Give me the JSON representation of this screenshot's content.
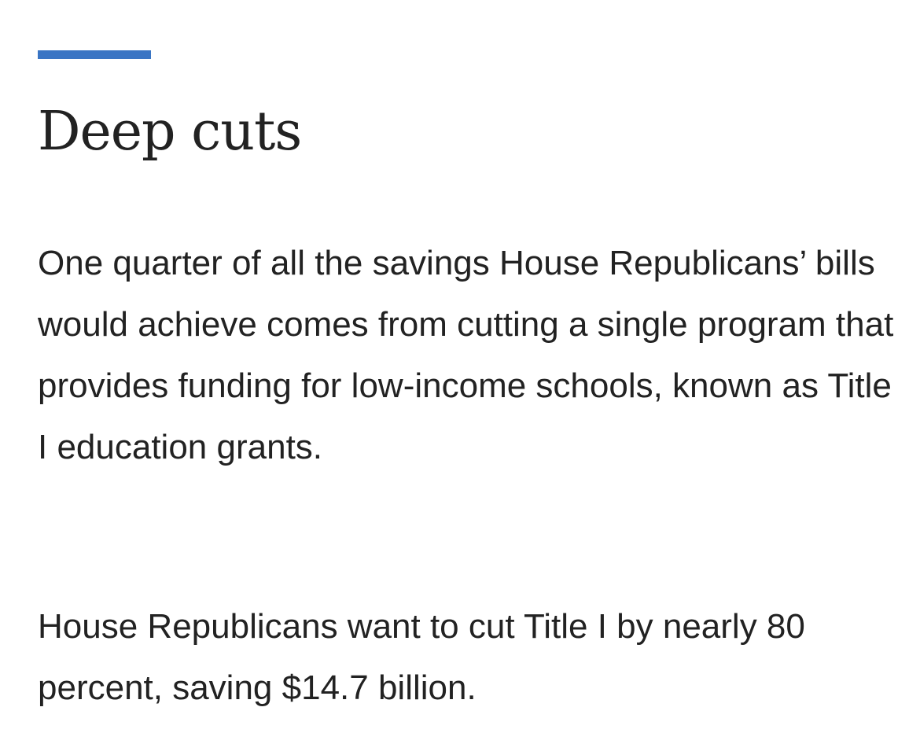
{
  "article": {
    "heading": "Deep cuts",
    "paragraphs": [
      "One quarter of all the savings House Republicans’ bills would achieve comes from cutting a single program that provides funding for low-income schools, known as Title I education grants.",
      "House Republicans want to cut Title I by nearly 80 percent, saving $14.7 billion."
    ]
  },
  "colors": {
    "accent": "#3a75c4",
    "text": "#222222",
    "background": "#ffffff"
  }
}
